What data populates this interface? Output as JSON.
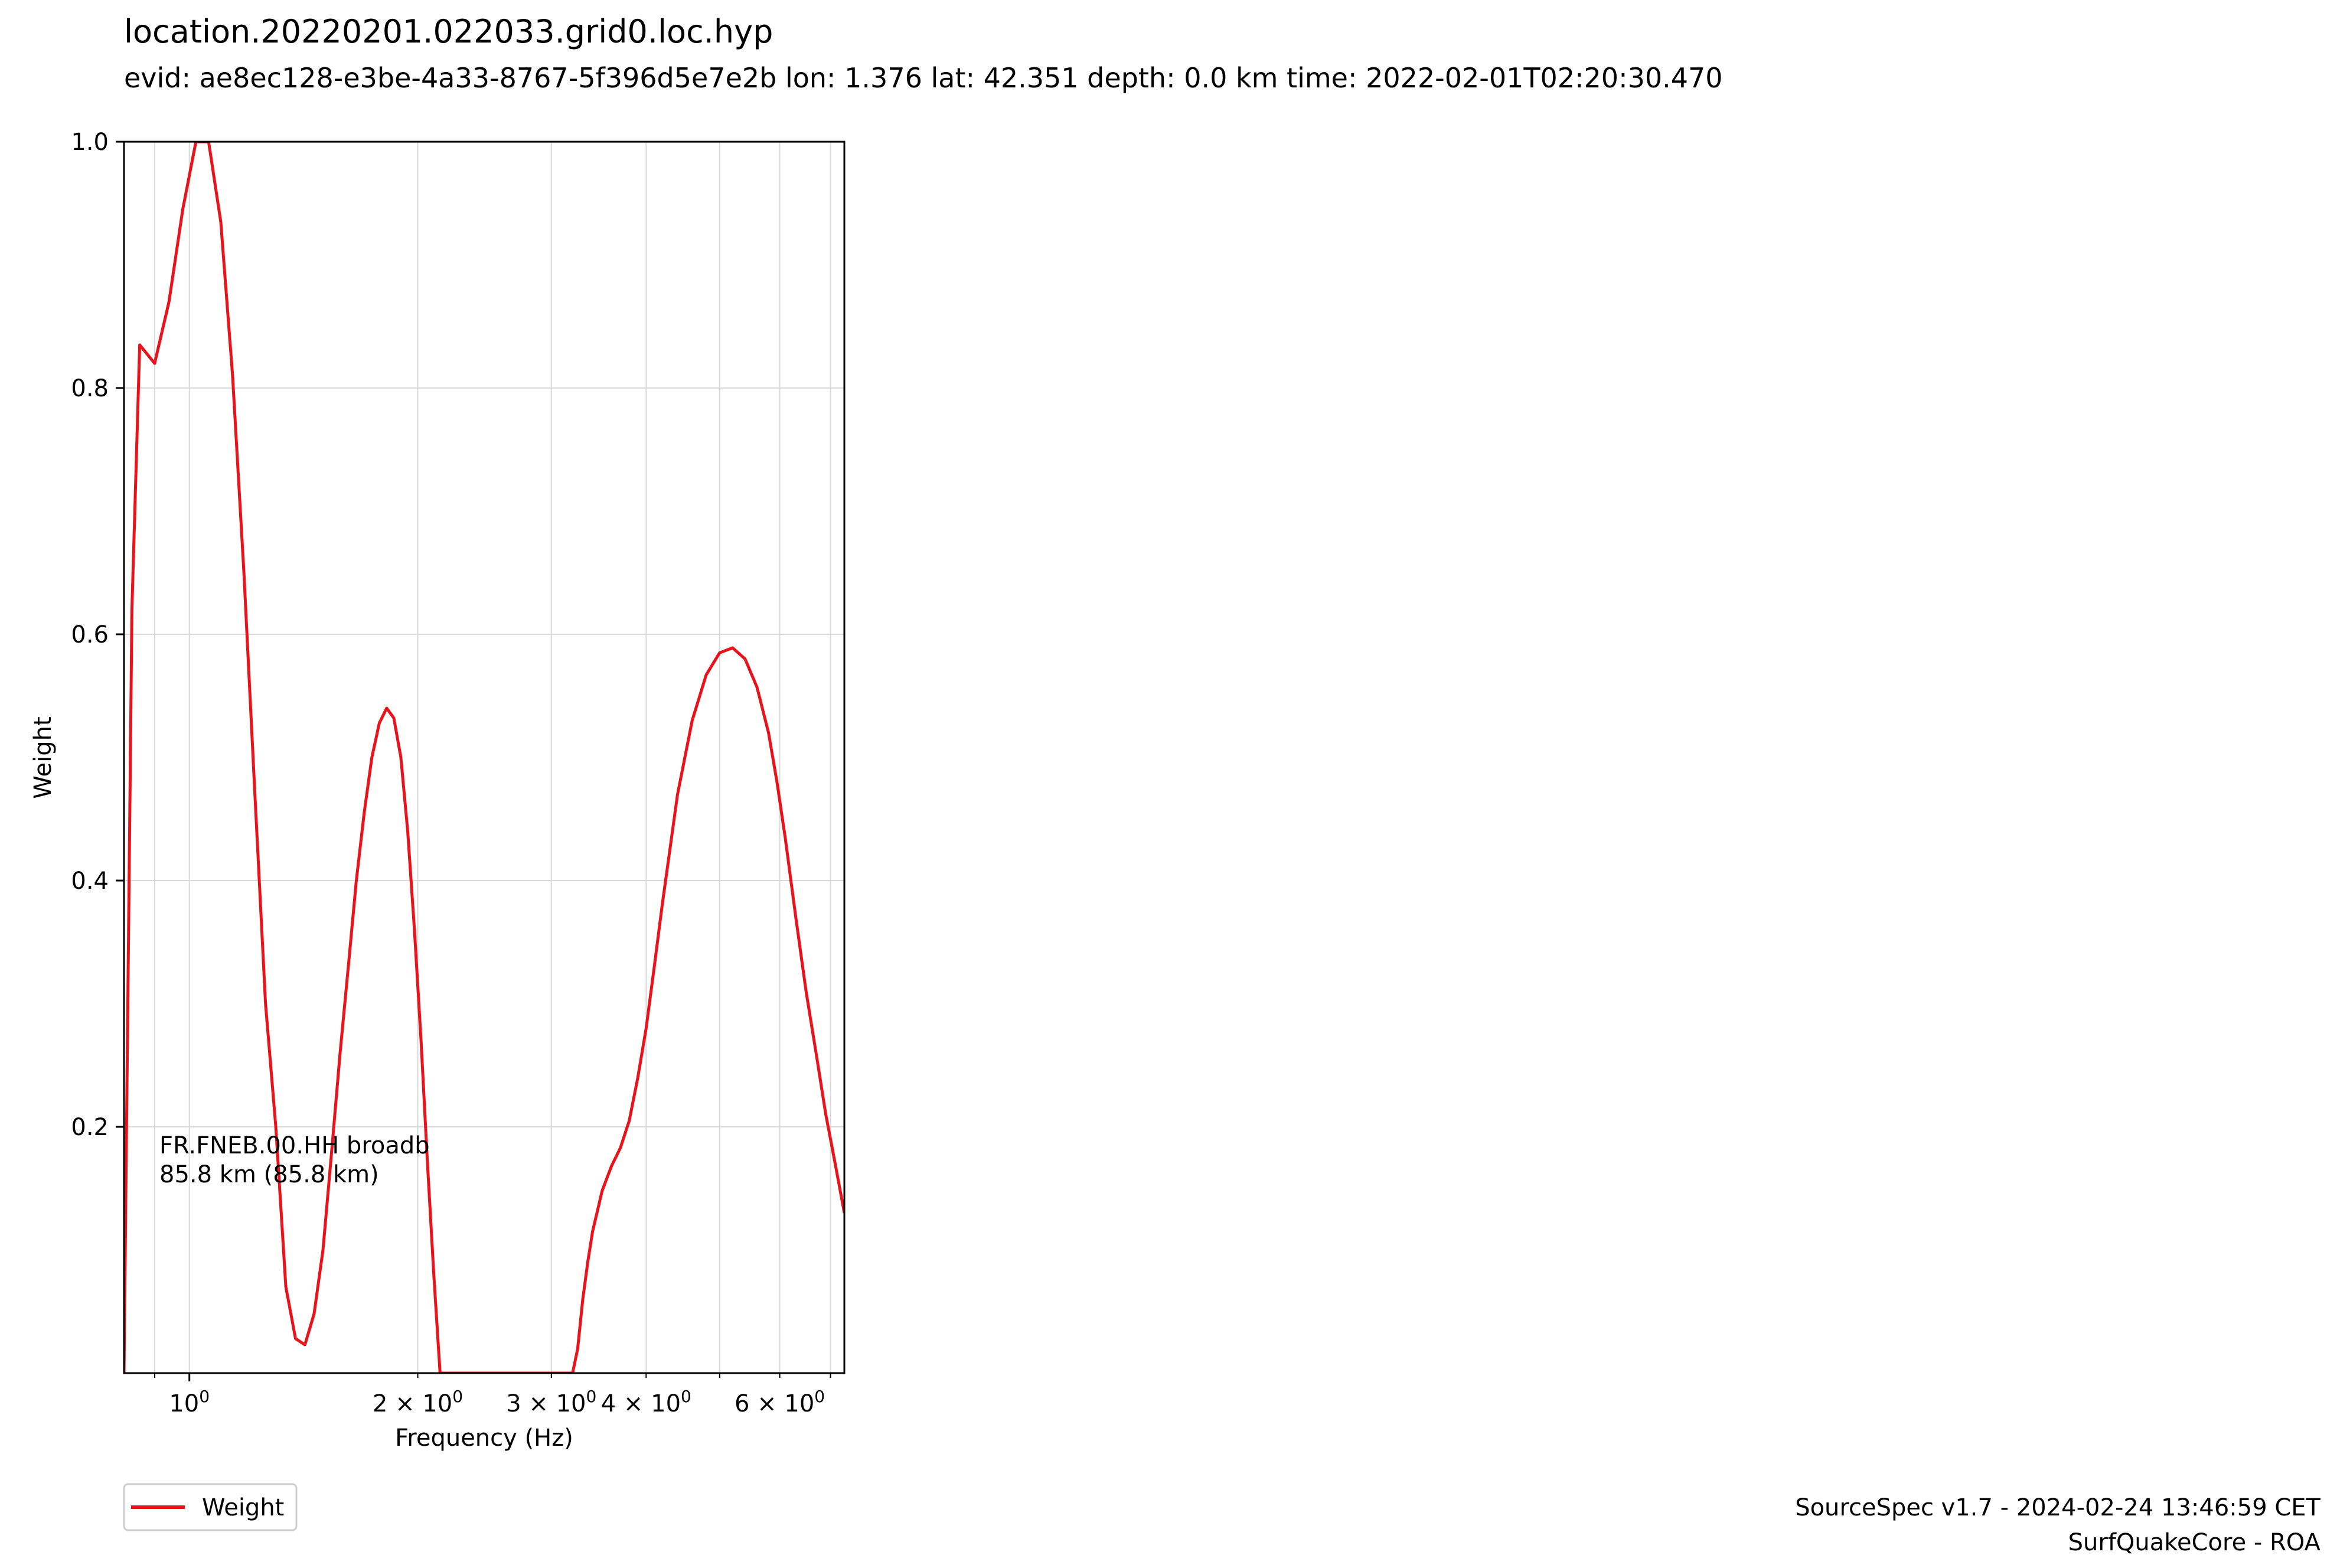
{
  "title": "location.20220201.022033.grid0.loc.hyp",
  "subtitle": "evid: ae8ec128-e3be-4a33-8767-5f396d5e7e2b lon: 1.376 lat: 42.351 depth: 0.0 km time: 2022-02-01T02:20:30.470",
  "colors": {
    "series": "#e8131b",
    "grid": "#d9d9d9",
    "axis": "#000000"
  },
  "chart_data": {
    "type": "line",
    "title": "",
    "xlabel": "Frequency (Hz)",
    "ylabel": "Weight",
    "xscale": "log",
    "xlim": [
      0.82,
      7.3
    ],
    "ylim": [
      0.0,
      1.0
    ],
    "grid": true,
    "legend_position": "below-left",
    "x_ticks": [
      {
        "value": 1,
        "base": "10",
        "exp": "0"
      },
      {
        "value": 2,
        "base": "2 × 10",
        "exp": "0"
      },
      {
        "value": 3,
        "base": "3 × 10",
        "exp": "0"
      },
      {
        "value": 4,
        "base": "4 × 10",
        "exp": "0"
      },
      {
        "value": 6,
        "base": "6 × 10",
        "exp": "0"
      }
    ],
    "y_ticks": [
      "0.2",
      "0.4",
      "0.6",
      "0.8",
      "1.0"
    ],
    "annotation": [
      "FR.FNEB.00.HH broadb",
      "85.8 km (85.8 km)"
    ],
    "series": [
      {
        "name": "Weight",
        "color": "#e8131b",
        "x": [
          0.82,
          0.84,
          0.86,
          0.9,
          0.94,
          0.98,
          1.02,
          1.06,
          1.1,
          1.14,
          1.18,
          1.22,
          1.26,
          1.3,
          1.34,
          1.38,
          1.42,
          1.46,
          1.5,
          1.54,
          1.58,
          1.62,
          1.66,
          1.7,
          1.74,
          1.78,
          1.82,
          1.86,
          1.9,
          1.94,
          1.98,
          2.02,
          2.06,
          2.1,
          2.14,
          2.18,
          2.22,
          2.26,
          2.3,
          2.34,
          2.38,
          2.42,
          2.46,
          2.5,
          2.55,
          2.6,
          2.7,
          2.8,
          2.9,
          3.0,
          3.1,
          3.15,
          3.2,
          3.25,
          3.3,
          3.35,
          3.4,
          3.5,
          3.6,
          3.7,
          3.8,
          3.9,
          4.0,
          4.1,
          4.2,
          4.4,
          4.6,
          4.8,
          5.0,
          5.2,
          5.4,
          5.6,
          5.8,
          5.95,
          6.1,
          6.3,
          6.5,
          6.7,
          6.9,
          7.1,
          7.3
        ],
        "y": [
          0.0,
          0.62,
          0.835,
          0.82,
          0.87,
          0.945,
          1.0,
          1.0,
          0.935,
          0.81,
          0.65,
          0.47,
          0.3,
          0.2,
          0.07,
          0.028,
          0.023,
          0.048,
          0.1,
          0.18,
          0.26,
          0.33,
          0.4,
          0.455,
          0.5,
          0.528,
          0.54,
          0.532,
          0.5,
          0.44,
          0.36,
          0.27,
          0.17,
          0.08,
          0.0,
          0.0,
          0.0,
          0.0,
          0.0,
          0.0,
          0.0,
          0.0,
          0.0,
          0.0,
          0.0,
          0.0,
          0.0,
          0.0,
          0.0,
          0.0,
          0.0,
          0.0,
          0.0,
          0.02,
          0.06,
          0.09,
          0.115,
          0.148,
          0.168,
          0.183,
          0.205,
          0.24,
          0.28,
          0.33,
          0.38,
          0.47,
          0.53,
          0.567,
          0.585,
          0.589,
          0.58,
          0.557,
          0.52,
          0.48,
          0.435,
          0.37,
          0.31,
          0.26,
          0.21,
          0.17,
          0.13
        ]
      }
    ]
  },
  "legend": {
    "label": "Weight"
  },
  "footer": {
    "line1": "SourceSpec v1.7 - 2024-02-24 13:46:59 CET",
    "line2": "SurfQuakeCore - ROA"
  }
}
